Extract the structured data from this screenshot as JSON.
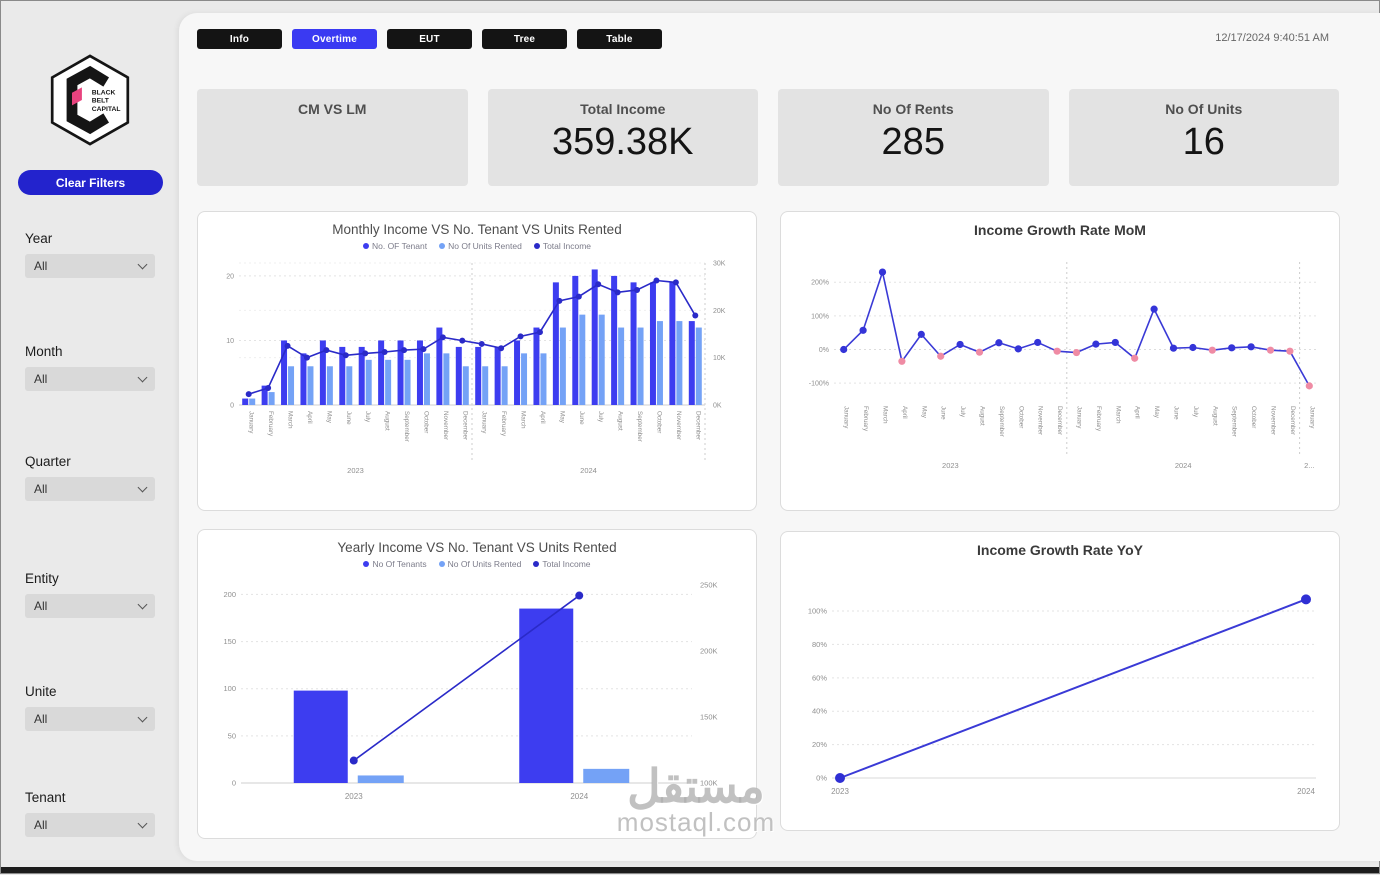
{
  "header": {
    "timestamp": "12/17/2024 9:40:51 AM",
    "tabs": [
      {
        "label": "Info",
        "active": false
      },
      {
        "label": "Overtime",
        "active": true
      },
      {
        "label": "EUT",
        "active": false
      },
      {
        "label": "Tree",
        "active": false
      },
      {
        "label": "Table",
        "active": false
      }
    ]
  },
  "sidebar": {
    "logo": {
      "lines": [
        "BLACK",
        "BELT",
        "CAPITAL"
      ]
    },
    "clear_filters": "Clear Filters",
    "filters": [
      {
        "label": "Year",
        "value": "All"
      },
      {
        "label": "Month",
        "value": "All"
      },
      {
        "label": "Quarter",
        "value": "All"
      },
      {
        "label": "Entity",
        "value": "All"
      },
      {
        "label": "Unite",
        "value": "All"
      },
      {
        "label": "Tenant",
        "value": "All"
      }
    ]
  },
  "kpis": [
    {
      "title": "CM VS LM",
      "value": ""
    },
    {
      "title": "Total Income",
      "value": "359.38K"
    },
    {
      "title": "No Of Rents",
      "value": "285"
    },
    {
      "title": "No Of Units",
      "value": "16"
    }
  ],
  "colors": {
    "bar_dark_blue": "#3d3df0",
    "bar_light_blue": "#74a2f6",
    "line_navy": "#2a2ac8",
    "line_blue": "#3a3ad6",
    "negative_pink": "#ef8ba4",
    "tab_active_blue": "#3a3af2",
    "tab_black": "#141414",
    "button_blue": "#2323cd"
  },
  "watermark": {
    "arabic": "مستقل",
    "latin": "mostaql.com"
  },
  "chart_data": [
    {
      "type": "combo-bar-line",
      "title": "Monthly Income VS No. Tenant VS Units Rented",
      "legend": [
        {
          "label": "No. OF Tenant",
          "color": "#3d3df0"
        },
        {
          "label": "No Of Units Rented",
          "color": "#74a2f6"
        },
        {
          "label": "Total Income",
          "color": "#2a2ac8"
        }
      ],
      "categories": [
        "January",
        "February",
        "March",
        "April",
        "May",
        "June",
        "July",
        "August",
        "September",
        "October",
        "November",
        "December",
        "January",
        "February",
        "March",
        "April",
        "May",
        "June",
        "July",
        "August",
        "September",
        "October",
        "November",
        "December"
      ],
      "year_groups": [
        {
          "label": "2023",
          "span": 12
        },
        {
          "label": "2024",
          "span": 12
        }
      ],
      "series": [
        {
          "name": "No. OF Tenant",
          "type": "bar",
          "axis": "left",
          "values": [
            1,
            3,
            10,
            8,
            10,
            9,
            9,
            10,
            10,
            10,
            12,
            9,
            9,
            9,
            10,
            12,
            19,
            20,
            21,
            20,
            19,
            19,
            19,
            13
          ]
        },
        {
          "name": "No Of Units Rented",
          "type": "bar",
          "axis": "left",
          "values": [
            1,
            2,
            6,
            6,
            6,
            6,
            7,
            7,
            7,
            8,
            8,
            6,
            6,
            6,
            8,
            8,
            12,
            14,
            14,
            12,
            12,
            13,
            13,
            12
          ]
        },
        {
          "name": "Total Income",
          "type": "line",
          "axis": "right",
          "values_k": [
            2.3,
            3.6,
            12.5,
            10,
            11.6,
            10.5,
            10.9,
            11.2,
            11.6,
            11.8,
            14.3,
            13.6,
            12.9,
            12,
            14.5,
            15.4,
            22,
            22.9,
            25.5,
            23.8,
            24.3,
            26.3,
            25.9,
            18.9
          ]
        }
      ],
      "left_axis": {
        "ticks": [
          0,
          10,
          20
        ],
        "max": 22
      },
      "right_axis": {
        "tick_labels": [
          "0K",
          "10K",
          "20K",
          "30K"
        ],
        "tick_values_k": [
          0,
          10,
          20,
          30
        ],
        "max": 30
      }
    },
    {
      "type": "line",
      "title": "Income Growth Rate MoM",
      "categories": [
        "January",
        "February",
        "March",
        "April",
        "May",
        "June",
        "July",
        "August",
        "September",
        "October",
        "November",
        "December",
        "January",
        "February",
        "March",
        "April",
        "May",
        "June",
        "July",
        "August",
        "September",
        "October",
        "November",
        "December",
        "January"
      ],
      "year_groups": [
        {
          "label": "2023",
          "span": 12
        },
        {
          "label": "2024",
          "span": 12
        },
        {
          "label": "2...",
          "span": 1
        }
      ],
      "values_pct": [
        0,
        57,
        230,
        -35,
        45,
        -20,
        15,
        -8,
        20,
        2,
        21,
        -5,
        -9,
        16,
        21,
        -26,
        120,
        4,
        6,
        -2,
        5,
        8,
        -2,
        -5,
        -108
      ],
      "y_axis": {
        "tick_labels": [
          "-100%",
          "0%",
          "100%",
          "200%"
        ],
        "tick_values": [
          -100,
          0,
          100,
          200
        ],
        "min": -150,
        "max": 260
      },
      "point_colors": {
        "positive": "#3434d8",
        "negative": "#ef8ba4"
      }
    },
    {
      "type": "combo-bar-line",
      "title": "Yearly Income VS No. Tenant VS Units Rented",
      "legend": [
        {
          "label": "No Of Tenants",
          "color": "#3d3df0"
        },
        {
          "label": "No Of Units Rented",
          "color": "#74a2f6"
        },
        {
          "label": "Total Income",
          "color": "#2a2ac8"
        }
      ],
      "categories": [
        "2023",
        "2024"
      ],
      "series": [
        {
          "name": "No Of Tenants",
          "type": "bar",
          "axis": "left",
          "values": [
            98,
            185
          ]
        },
        {
          "name": "No Of Units Rented",
          "type": "bar",
          "axis": "left",
          "values": [
            8,
            15
          ]
        },
        {
          "name": "Total Income",
          "type": "line",
          "axis": "right",
          "values_k": [
            117,
            242
          ]
        }
      ],
      "left_axis": {
        "ticks": [
          0,
          50,
          100,
          150,
          200
        ],
        "max": 210
      },
      "right_axis": {
        "tick_labels": [
          "100K",
          "150K",
          "200K",
          "250K"
        ],
        "tick_values_k": [
          100,
          150,
          200,
          250
        ],
        "min": 100,
        "max": 250
      }
    },
    {
      "type": "line",
      "title": "Income Growth Rate YoY",
      "categories": [
        "2023",
        "2024"
      ],
      "values_pct": [
        0,
        107
      ],
      "y_axis": {
        "tick_labels": [
          "0%",
          "20%",
          "40%",
          "60%",
          "80%",
          "100%"
        ],
        "tick_values": [
          0,
          20,
          40,
          60,
          80,
          100
        ],
        "min": 0,
        "max": 115
      }
    }
  ]
}
